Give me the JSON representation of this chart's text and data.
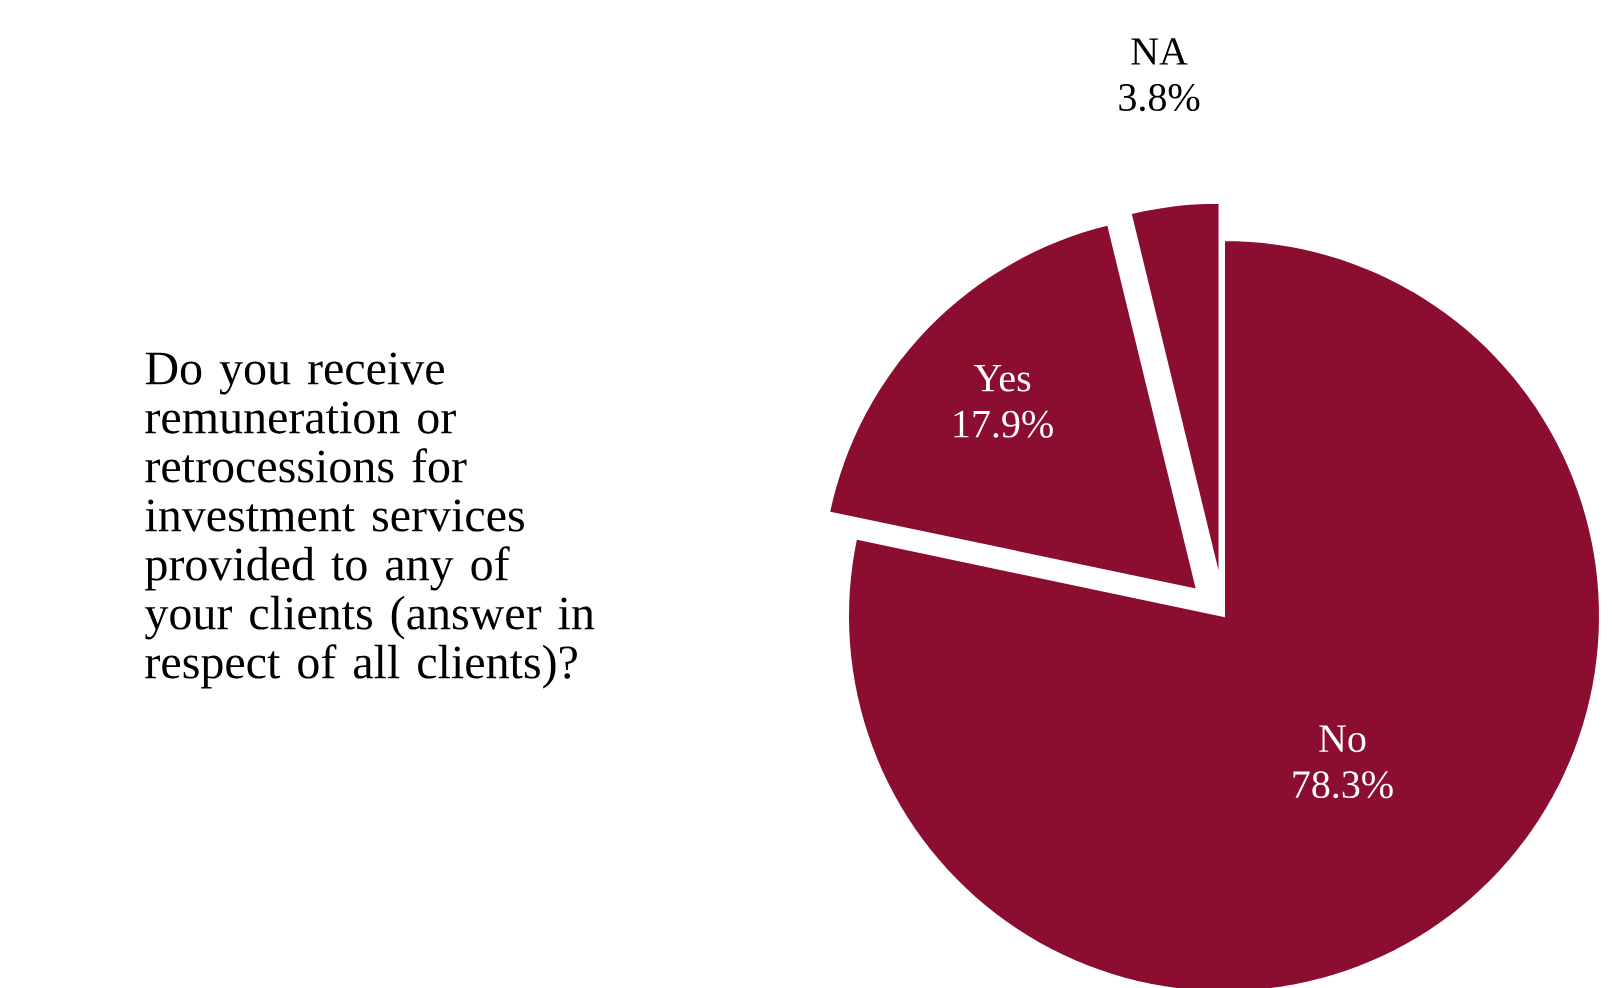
{
  "chart_data": {
    "type": "pie",
    "title": "Do you receive remuneration or retrocessions for investment services provided to any of your clients (answer in respect of all clients)?",
    "categories": [
      "No",
      "Yes",
      "NA"
    ],
    "values": [
      78.3,
      17.9,
      3.8
    ],
    "value_labels": [
      "78.3%",
      "17.9%",
      "3.8%"
    ],
    "colors": [
      "#8b0d2f",
      "#8b0d2f",
      "#8b0d2f"
    ]
  }
}
